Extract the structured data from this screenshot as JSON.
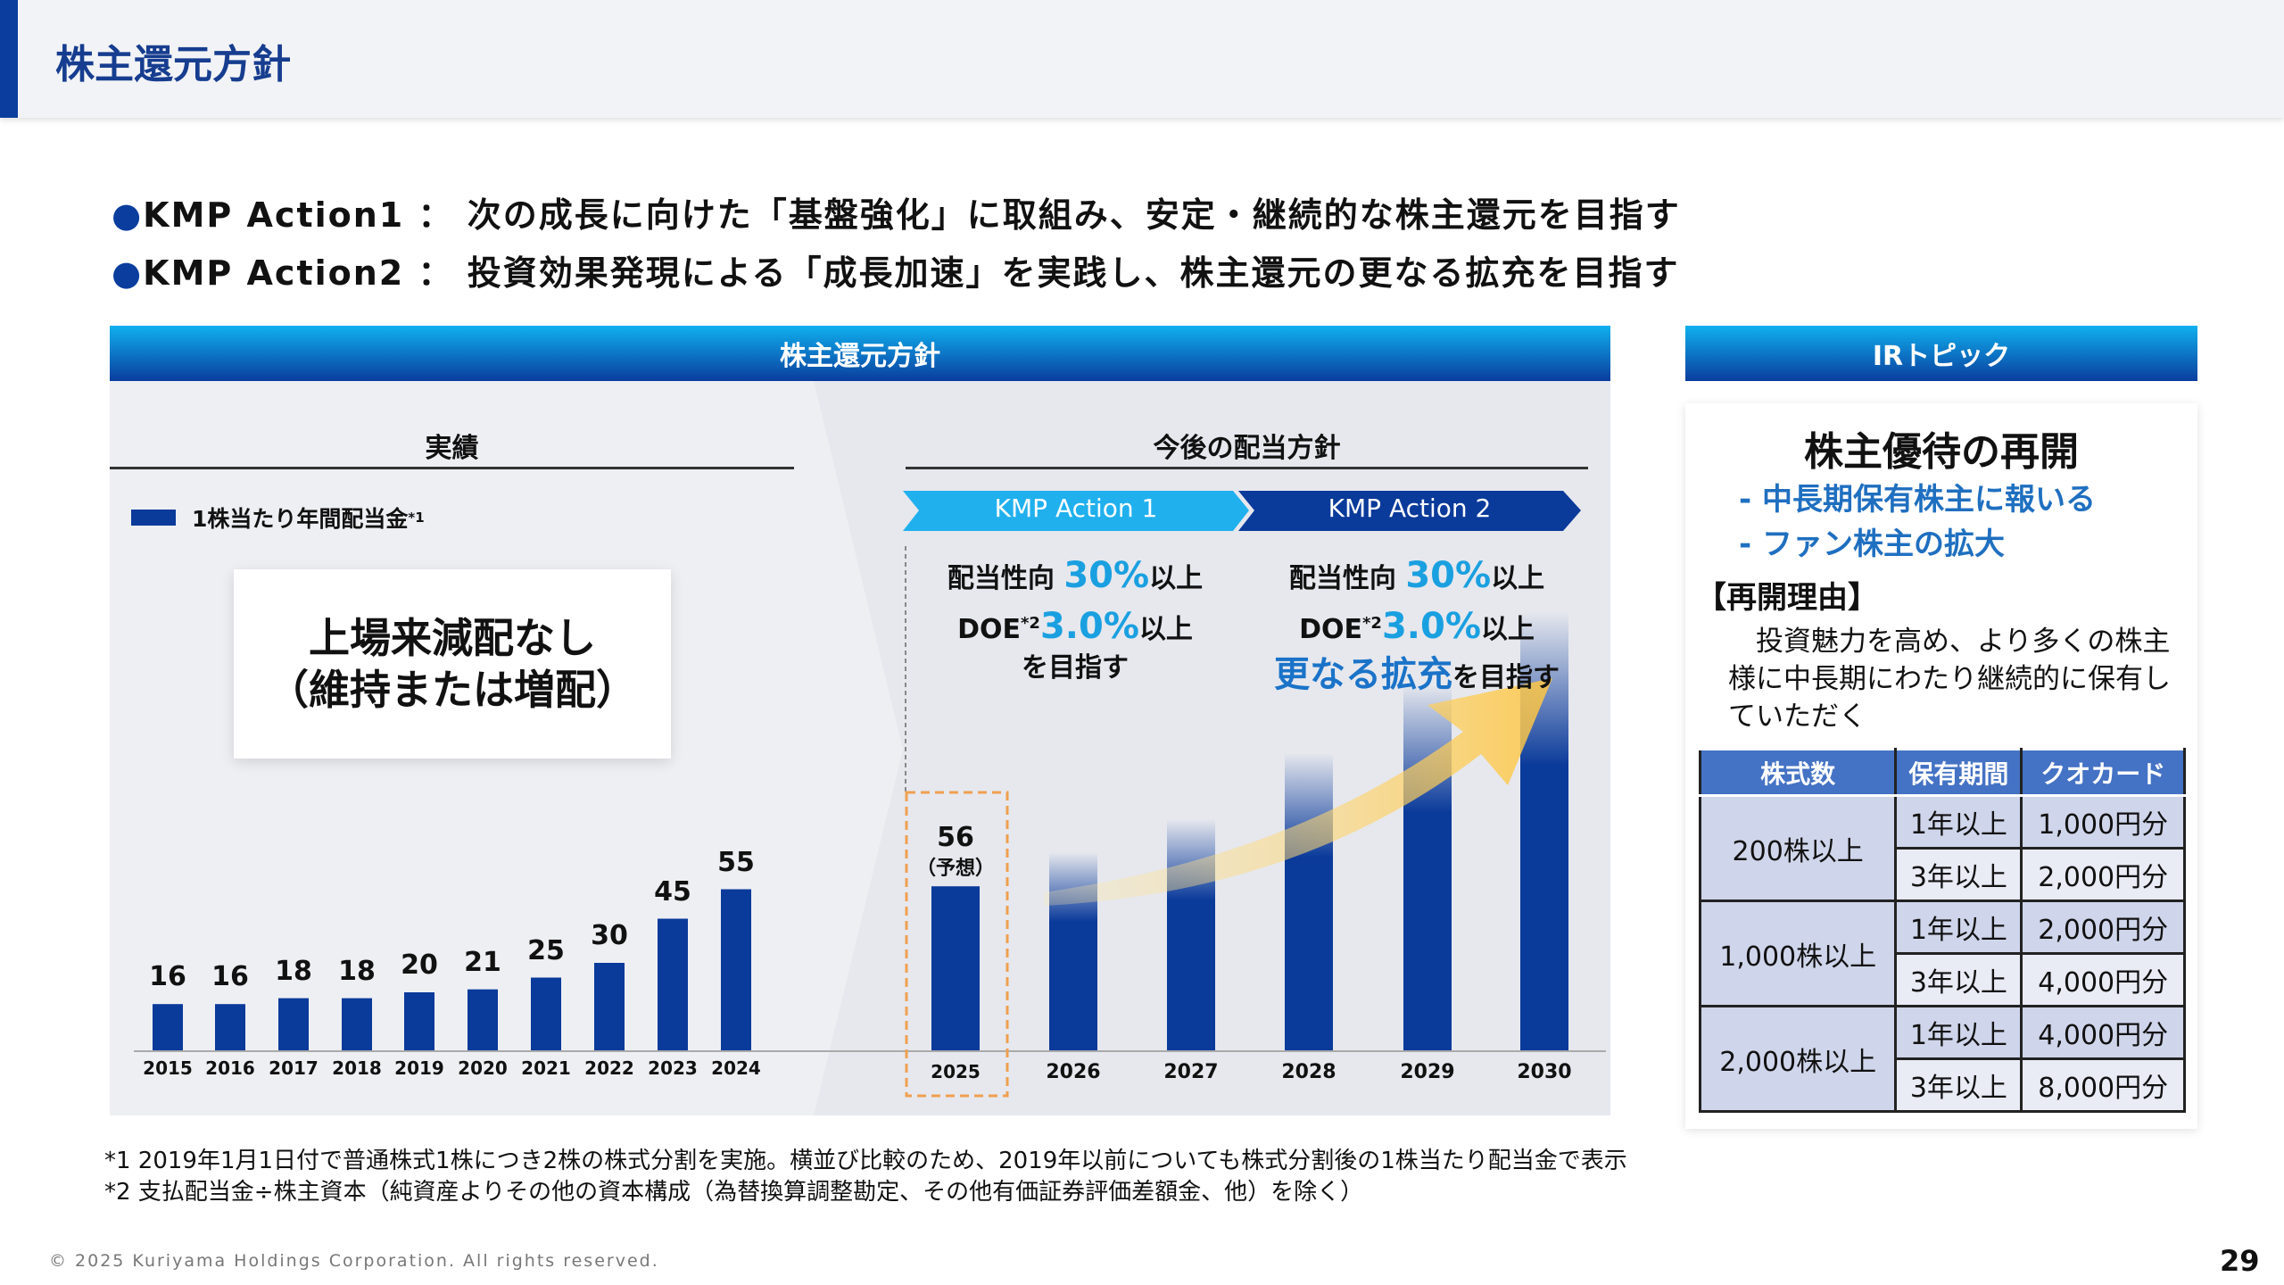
{
  "header": {
    "title": "株主還元方針"
  },
  "bullets": [
    "KMP Action1 ： 次の成長に向けた「基盤強化」に取組み、安定・継続的な株主還元を目指す",
    "KMP Action2 ： 投資効果発現による「成長加速」を実践し、株主還元の更なる拡充を目指す"
  ],
  "left_panel": {
    "title": "株主還元方針",
    "past_label": "実績",
    "future_label": "今後の配当方針",
    "legend": "1株当たり年間配当金",
    "legend_sup": "*1",
    "box_line1": "上場来減配なし",
    "box_line2": "（維持または増配）",
    "action1": "KMP Action 1",
    "action2": "KMP Action 2",
    "policy1": {
      "l1a": "配当性向 ",
      "l1b": "30%",
      "l1c": "以上",
      "l2a": "DOE",
      "l2sup": "*2",
      "l2b": "3.0%",
      "l2c": "以上",
      "l3": "を目指す"
    },
    "policy2": {
      "l1a": "配当性向 ",
      "l1b": "30%",
      "l1c": "以上",
      "l2a": "DOE",
      "l2sup": "*2",
      "l2b": "3.0%",
      "l2c": "以上",
      "l3a": "更なる拡充",
      "l3b": "を目指す"
    },
    "forecast_note": "（予想）"
  },
  "chart_data": {
    "type": "bar",
    "series": [
      {
        "name": "1株当たり年間配当金",
        "values": [
          16,
          16,
          18,
          18,
          20,
          21,
          25,
          30,
          45,
          55,
          56
        ]
      }
    ],
    "categories": [
      "2015",
      "2016",
      "2017",
      "2018",
      "2019",
      "2020",
      "2021",
      "2022",
      "2023",
      "2024",
      "2025"
    ],
    "future_categories": [
      "2026",
      "2027",
      "2028",
      "2029",
      "2030"
    ],
    "forecast": "2025",
    "colors": {
      "bar": "#0a3a9a",
      "forecast_box": "#f0a050",
      "arrow": "#ffd060"
    }
  },
  "ir": {
    "title": "IRトピック",
    "heading": "株主優待の再開",
    "sub1": "- 中長期保有株主に報いる",
    "sub2": "- ファン株主の拡大",
    "reason_title": "【再開理由】",
    "reason_text": "　投資魅力を高め、より多くの株主様に中長期にわたり継続的に保有していただく",
    "table": {
      "headers": [
        "株式数",
        "保有期間",
        "クオカード"
      ],
      "groups": [
        {
          "shares": "200株以上",
          "rows": [
            [
              "1年以上",
              "1,000円分"
            ],
            [
              "3年以上",
              "2,000円分"
            ]
          ]
        },
        {
          "shares": "1,000株以上",
          "rows": [
            [
              "1年以上",
              "2,000円分"
            ],
            [
              "3年以上",
              "4,000円分"
            ]
          ]
        },
        {
          "shares": "2,000株以上",
          "rows": [
            [
              "1年以上",
              "4,000円分"
            ],
            [
              "3年以上",
              "8,000円分"
            ]
          ]
        }
      ]
    }
  },
  "footnotes": [
    "*1 2019年1月1日付で普通株式1株につき2株の株式分割を実施。横並び比較のため、2019年以前についても株式分割後の1株当たり配当金で表示",
    "*2 支払配当金÷株主資本（純資産よりその他の資本構成（為替換算調整勘定、その他有価証券評価差額金、他）を除く）"
  ],
  "copyright": "© 2025 Kuriyama Holdings Corporation. All rights reserved.",
  "page_number": "29"
}
